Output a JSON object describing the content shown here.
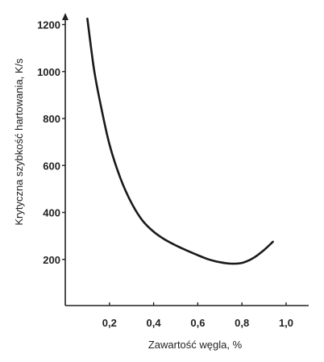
{
  "chart_data": {
    "type": "line",
    "title": "",
    "xlabel": "Zawartość węgla,   %",
    "ylabel": "Krytyczna szybkość hartowania,   K/s",
    "xlim": [
      0,
      1.06
    ],
    "ylim": [
      0,
      1230
    ],
    "grid": false,
    "x_ticks": [
      {
        "value": 0.2,
        "label": "0,2"
      },
      {
        "value": 0.4,
        "label": "0,4"
      },
      {
        "value": 0.6,
        "label": "0,6"
      },
      {
        "value": 0.8,
        "label": "0,8"
      },
      {
        "value": 1.0,
        "label": "1,0"
      }
    ],
    "y_ticks": [
      {
        "value": 200,
        "label": "200"
      },
      {
        "value": 400,
        "label": "400"
      },
      {
        "value": 600,
        "label": "600"
      },
      {
        "value": 800,
        "label": "800"
      },
      {
        "value": 1000,
        "label": "1000"
      },
      {
        "value": 1200,
        "label": "1200"
      }
    ],
    "series": [
      {
        "color": "#1a1a1a",
        "x": [
          0.1,
          0.13,
          0.16,
          0.2,
          0.25,
          0.3,
          0.35,
          0.4,
          0.45,
          0.5,
          0.55,
          0.6,
          0.65,
          0.7,
          0.75,
          0.8,
          0.85,
          0.9,
          0.94
        ],
        "y": [
          1225,
          1010,
          860,
          690,
          545,
          440,
          365,
          318,
          285,
          260,
          238,
          218,
          200,
          188,
          182,
          185,
          205,
          240,
          275
        ]
      }
    ]
  }
}
